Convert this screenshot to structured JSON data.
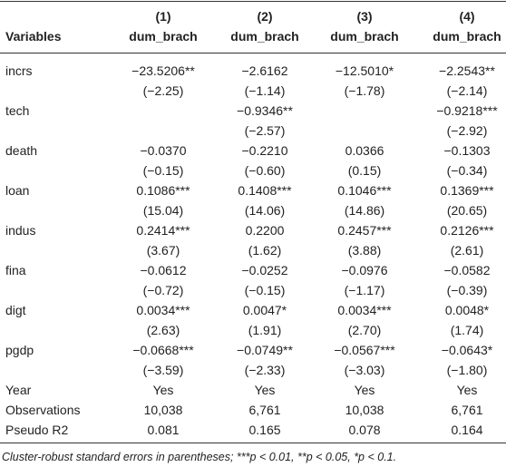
{
  "table": {
    "header": {
      "label": "Variables",
      "columns": [
        {
          "number": "(1)",
          "name": "dum_brach"
        },
        {
          "number": "(2)",
          "name": "dum_brach"
        },
        {
          "number": "(3)",
          "name": "dum_brach"
        },
        {
          "number": "(4)",
          "name": "dum_brach"
        }
      ]
    },
    "variables": [
      {
        "name": "incrs",
        "coef": [
          "−23.5206**",
          "−2.6162",
          "−12.5010*",
          "−2.2543**"
        ],
        "t": [
          "(−2.25)",
          "(−1.14)",
          "(−1.78)",
          "(−2.14)"
        ]
      },
      {
        "name": "tech",
        "coef": [
          null,
          "−0.9346**",
          null,
          "−0.9218***"
        ],
        "t": [
          null,
          "(−2.57)",
          null,
          "(−2.92)"
        ]
      },
      {
        "name": "death",
        "coef": [
          "−0.0370",
          "−0.2210",
          "0.0366",
          "−0.1303"
        ],
        "t": [
          "(−0.15)",
          "(−0.60)",
          "(0.15)",
          "(−0.34)"
        ]
      },
      {
        "name": "loan",
        "coef": [
          "0.1086***",
          "0.1408***",
          "0.1046***",
          "0.1369***"
        ],
        "t": [
          "(15.04)",
          "(14.06)",
          "(14.86)",
          "(20.65)"
        ]
      },
      {
        "name": "indus",
        "coef": [
          "0.2414***",
          "0.2200",
          "0.2457***",
          "0.2126***"
        ],
        "t": [
          "(3.67)",
          "(1.62)",
          "(3.88)",
          "(2.61)"
        ]
      },
      {
        "name": "fina",
        "coef": [
          "−0.0612",
          "−0.0252",
          "−0.0976",
          "−0.0582"
        ],
        "t": [
          "(−0.72)",
          "(−0.15)",
          "(−1.17)",
          "(−0.39)"
        ]
      },
      {
        "name": "digt",
        "coef": [
          "0.0034***",
          "0.0047*",
          "0.0034***",
          "0.0048*"
        ],
        "t": [
          "(2.63)",
          "(1.91)",
          "(2.70)",
          "(1.74)"
        ]
      },
      {
        "name": "pgdp",
        "coef": [
          "−0.0668***",
          "−0.0749**",
          "−0.0567***",
          "−0.0643*"
        ],
        "t": [
          "(−3.59)",
          "(−2.33)",
          "(−3.03)",
          "(−1.80)"
        ]
      }
    ],
    "stats": [
      {
        "name": "Year",
        "values": [
          "Yes",
          "Yes",
          "Yes",
          "Yes"
        ]
      },
      {
        "name": "Observations",
        "values": [
          "10,038",
          "6,761",
          "10,038",
          "6,761"
        ]
      },
      {
        "name": "Pseudo R2",
        "values": [
          "0.081",
          "0.165",
          "0.078",
          "0.164"
        ]
      }
    ],
    "note": "Cluster-robust standard errors in parentheses; ***p < 0.01, **p < 0.05, *p < 0.1."
  }
}
